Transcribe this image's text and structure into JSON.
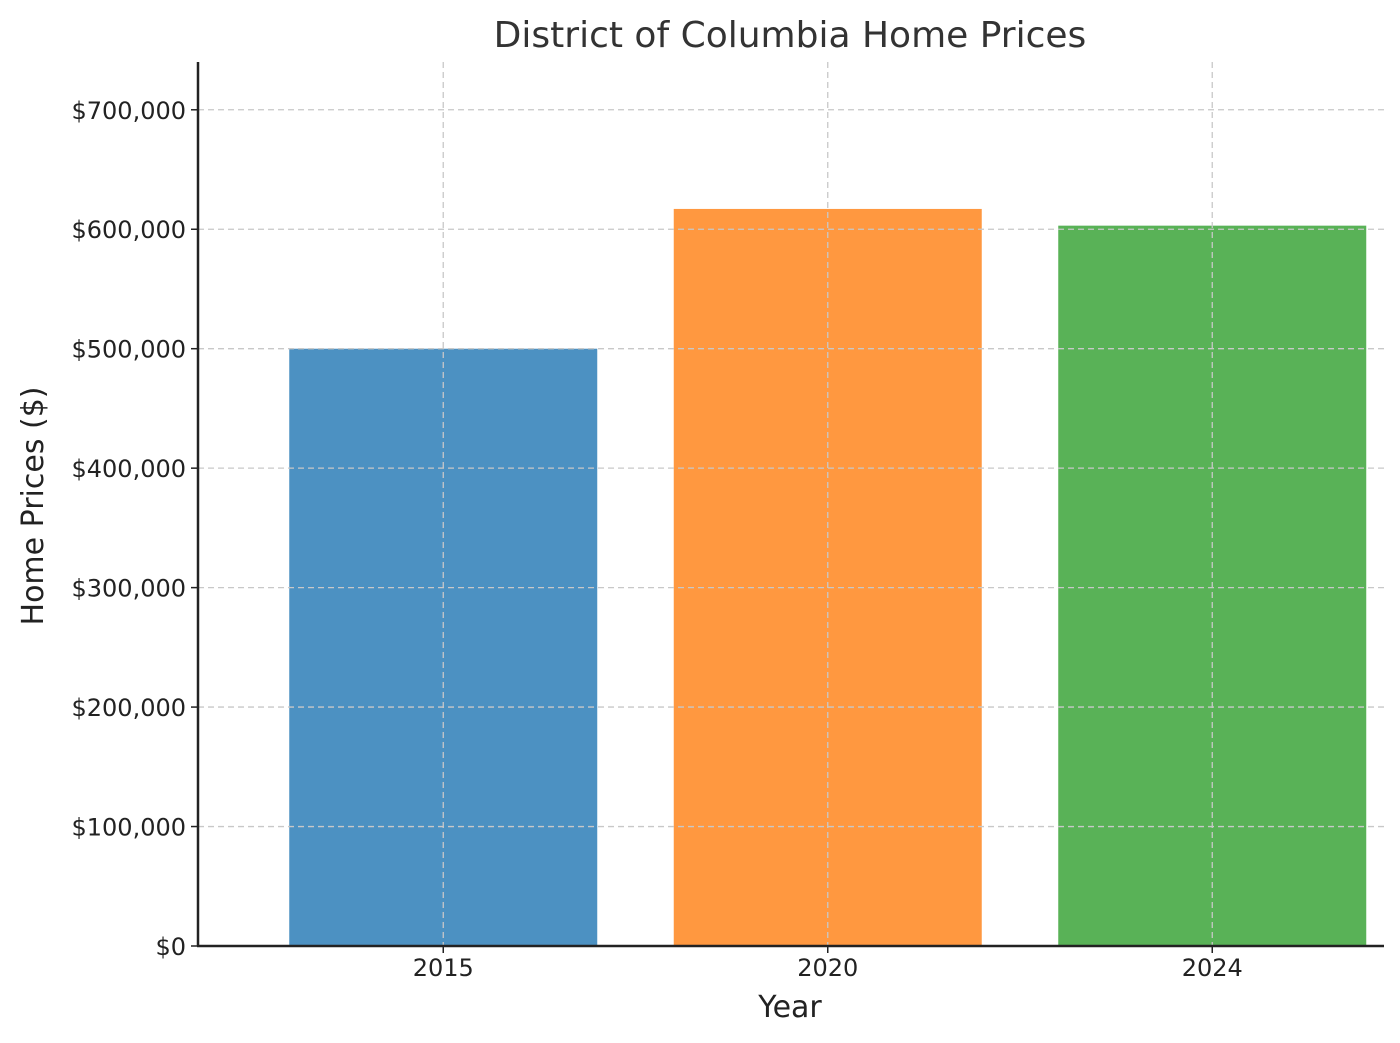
{
  "chart_data": {
    "type": "bar",
    "title": "District of Columbia Home Prices",
    "xlabel": "Year",
    "ylabel": "Home Prices ($)",
    "categories": [
      "2015",
      "2020",
      "2024"
    ],
    "values": [
      500000,
      617000,
      603000
    ],
    "colors": [
      "#4c91c2",
      "#ff9840",
      "#59b257"
    ],
    "ylim": [
      0,
      740000
    ],
    "yticks": [
      0,
      100000,
      200000,
      300000,
      400000,
      500000,
      600000,
      700000
    ],
    "ytick_labels": [
      "$0",
      "$100,000",
      "$200,000",
      "$300,000",
      "$400,000",
      "$500,000",
      "$600,000",
      "$700,000"
    ],
    "grid": true,
    "legend": false
  }
}
